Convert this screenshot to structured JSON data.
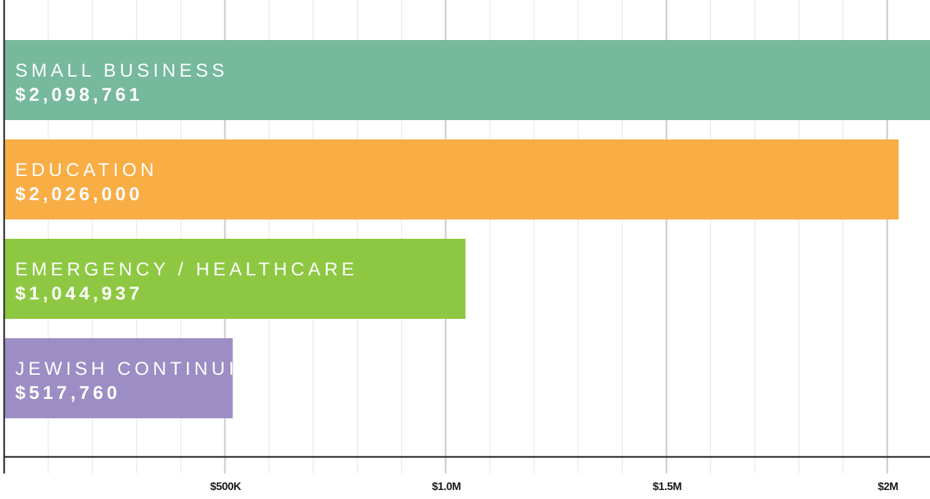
{
  "chart_data": {
    "type": "bar",
    "orientation": "horizontal",
    "title": "",
    "xlabel": "",
    "ylabel": "",
    "xlim": [
      0,
      2100000
    ],
    "grid": true,
    "legend": "none",
    "categories": [
      "SMALL BUSINESS",
      "EDUCATION",
      "EMERGENCY / HEALTHCARE",
      "JEWISH CONTINUITY"
    ],
    "values": [
      2098761,
      2026000,
      1044937,
      517760
    ],
    "value_labels": [
      "$2,098,761",
      "$2,026,000",
      "$1,044,937",
      "$517,760"
    ],
    "colors": [
      "#76b99c",
      "#f9ad45",
      "#8ec843",
      "#9d8dc5"
    ],
    "ticks": [
      {
        "value": 500000,
        "label": "$500K"
      },
      {
        "value": 1000000,
        "label": "$1.0M"
      },
      {
        "value": 1500000,
        "label": "$1.5M"
      },
      {
        "value": 2000000,
        "label": "$2M"
      }
    ],
    "minor_tick_step": 100000
  }
}
